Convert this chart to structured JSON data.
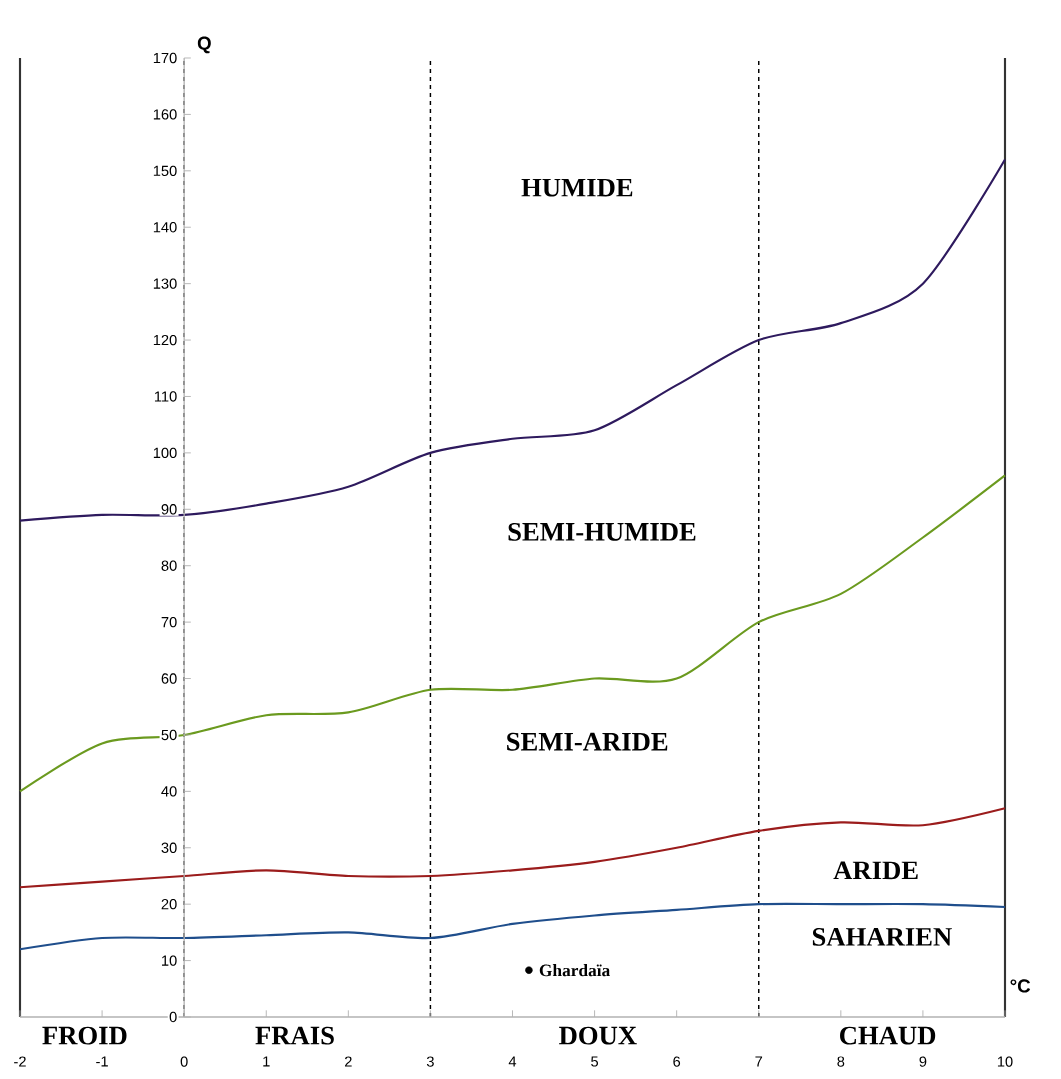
{
  "chart_data": {
    "type": "line",
    "xlabel": "°C",
    "ylabel": "Q",
    "x": [
      -2,
      -1,
      0,
      1,
      2,
      3,
      4,
      5,
      6,
      7,
      8,
      9,
      10
    ],
    "xlim": [
      -2,
      10
    ],
    "ylim": [
      0,
      170
    ],
    "xticks": [
      -2,
      -1,
      0,
      1,
      2,
      3,
      4,
      5,
      6,
      7,
      8,
      9,
      10
    ],
    "yticks": [
      0,
      10,
      20,
      30,
      40,
      50,
      60,
      70,
      80,
      90,
      100,
      110,
      120,
      130,
      140,
      150,
      160,
      170
    ],
    "grid": false,
    "marker": "none",
    "line_style": "solid",
    "series": [
      {
        "color": "#2e1a5e",
        "values": [
          88,
          89,
          89,
          91,
          94,
          100,
          102.5,
          104,
          112,
          120,
          123,
          130,
          152
        ]
      },
      {
        "color": "#6b9a1f",
        "values": [
          40,
          48.5,
          50,
          53.5,
          54,
          58,
          58,
          60,
          60,
          70,
          75,
          85,
          96
        ]
      },
      {
        "color": "#9b1c1c",
        "values": [
          23,
          24,
          25,
          26,
          25,
          25,
          26,
          27.5,
          30,
          33,
          34.5,
          34,
          37
        ]
      },
      {
        "color": "#1f4e8c",
        "values": [
          12,
          14,
          14,
          14.5,
          15,
          14,
          16.5,
          18,
          19,
          20,
          20,
          20,
          19.5
        ]
      },
      {
        "type": "scatter",
        "name": "Ghardaïa",
        "color": "#000000",
        "x": [
          4.2
        ],
        "values": [
          8.3
        ]
      }
    ],
    "ref_lines": [
      {
        "axis": "x",
        "value": 0,
        "line_style": "dashed"
      },
      {
        "axis": "x",
        "value": 3,
        "line_style": "dashed"
      },
      {
        "axis": "x",
        "value": 7,
        "line_style": "dashed"
      }
    ],
    "annotations": [
      "HUMIDE",
      "SEMI-HUMIDE",
      "SEMI-ARIDE",
      "ARIDE",
      "SAHARIEN",
      "FROID",
      "FRAIS",
      "DOUX",
      "CHAUD"
    ]
  }
}
